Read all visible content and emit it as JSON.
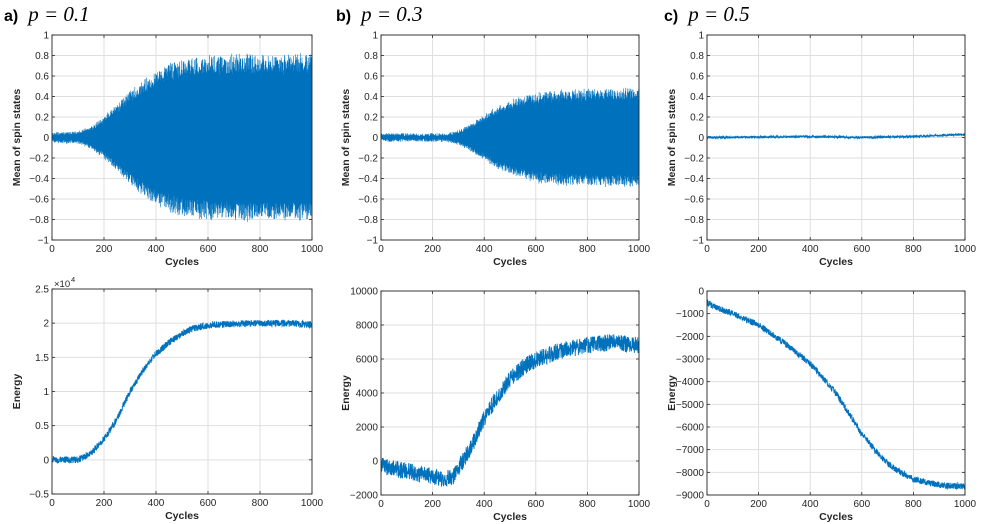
{
  "columns": [
    {
      "letter": "a)",
      "label": "p = 0.1"
    },
    {
      "letter": "b)",
      "label": "p = 0.3"
    },
    {
      "letter": "c)",
      "label": "p = 0.5"
    }
  ],
  "chart_data": [
    {
      "id": "a-spin",
      "type": "line",
      "title": "",
      "xlabel": "Cycles",
      "ylabel": "Mean of spin states",
      "xlim": [
        0,
        1000
      ],
      "ylim": [
        -1,
        1
      ],
      "grid": true,
      "color": "#0072bd",
      "xticks": [
        0,
        200,
        400,
        600,
        800,
        1000
      ],
      "yticks": [
        -1,
        -0.8,
        -0.6,
        -0.4,
        -0.2,
        0,
        0.2,
        0.4,
        0.6,
        0.8,
        1
      ],
      "ytick_labels": [
        "−1",
        "−0.8",
        "−0.6",
        "−0.4",
        "−0.2",
        "0",
        "0.2",
        "0.4",
        "0.6",
        "0.8",
        "1"
      ],
      "envelope": {
        "x": [
          0,
          100,
          150,
          200,
          250,
          300,
          350,
          400,
          450,
          500,
          550,
          600,
          650,
          700,
          800,
          900,
          1000
        ],
        "amplitude": [
          0.04,
          0.05,
          0.1,
          0.2,
          0.32,
          0.45,
          0.56,
          0.65,
          0.72,
          0.76,
          0.78,
          0.8,
          0.805,
          0.81,
          0.81,
          0.81,
          0.81
        ]
      }
    },
    {
      "id": "b-spin",
      "type": "line",
      "title": "",
      "xlabel": "Cycles",
      "ylabel": "Mean of spin states",
      "xlim": [
        0,
        1000
      ],
      "ylim": [
        -1,
        1
      ],
      "grid": true,
      "color": "#0072bd",
      "xticks": [
        0,
        200,
        400,
        600,
        800,
        1000
      ],
      "yticks": [
        -1,
        -0.8,
        -0.6,
        -0.4,
        -0.2,
        0,
        0.2,
        0.4,
        0.6,
        0.8,
        1
      ],
      "ytick_labels": [
        "−1",
        "−0.8",
        "−0.6",
        "−0.4",
        "−0.2",
        "0",
        "0.2",
        "0.4",
        "0.6",
        "0.8",
        "1"
      ],
      "envelope": {
        "x": [
          0,
          250,
          300,
          350,
          400,
          450,
          500,
          550,
          600,
          650,
          700,
          800,
          900,
          1000
        ],
        "amplitude": [
          0.03,
          0.03,
          0.06,
          0.13,
          0.22,
          0.3,
          0.36,
          0.4,
          0.43,
          0.45,
          0.46,
          0.47,
          0.475,
          0.48
        ]
      }
    },
    {
      "id": "c-spin",
      "type": "line",
      "title": "",
      "xlabel": "Cycles",
      "ylabel": "Mean of spin states",
      "xlim": [
        0,
        1000
      ],
      "ylim": [
        -1,
        1
      ],
      "grid": true,
      "color": "#0072bd",
      "xticks": [
        0,
        200,
        400,
        600,
        800,
        1000
      ],
      "yticks": [
        -1,
        -0.8,
        -0.6,
        -0.4,
        -0.2,
        0,
        0.2,
        0.4,
        0.6,
        0.8,
        1
      ],
      "ytick_labels": [
        "−1",
        "−0.8",
        "−0.6",
        "−0.4",
        "−0.2",
        "0",
        "0.2",
        "0.4",
        "0.6",
        "0.8",
        "1"
      ],
      "x": [
        0,
        200,
        400,
        600,
        800,
        1000
      ],
      "y": [
        0.0,
        0.005,
        0.01,
        0.0,
        0.01,
        0.03
      ],
      "noise": 0.01
    },
    {
      "id": "a-energy",
      "type": "line",
      "title": "",
      "xlabel": "Cycles",
      "ylabel": "Energy",
      "xlim": [
        0,
        1000
      ],
      "ylim": [
        -0.5,
        2.5
      ],
      "grid": true,
      "color": "#0072bd",
      "scale_note": "×10",
      "scale_exp": "4",
      "xticks": [
        0,
        200,
        400,
        600,
        800,
        1000
      ],
      "yticks": [
        -0.5,
        0,
        0.5,
        1,
        1.5,
        2,
        2.5
      ],
      "ytick_labels": [
        "−0.5",
        "0",
        "0.5",
        "1",
        "1.5",
        "2",
        "2.5"
      ],
      "x": [
        0,
        100,
        150,
        200,
        250,
        300,
        350,
        400,
        450,
        500,
        550,
        600,
        700,
        800,
        900,
        1000
      ],
      "y": [
        0.0,
        0.0,
        0.1,
        0.3,
        0.6,
        1.0,
        1.3,
        1.55,
        1.72,
        1.85,
        1.93,
        1.97,
        1.99,
        2.0,
        2.0,
        1.98
      ],
      "noise": 0.05
    },
    {
      "id": "b-energy",
      "type": "line",
      "title": "",
      "xlabel": "Cycles",
      "ylabel": "Energy",
      "xlim": [
        0,
        1000
      ],
      "ylim": [
        -2000,
        10000
      ],
      "grid": true,
      "color": "#0072bd",
      "xticks": [
        0,
        200,
        400,
        600,
        800,
        1000
      ],
      "yticks": [
        -2000,
        0,
        2000,
        4000,
        6000,
        8000,
        10000
      ],
      "ytick_labels": [
        "−2000",
        "0",
        "2000",
        "4000",
        "6000",
        "8000",
        "10000"
      ],
      "x": [
        0,
        100,
        200,
        250,
        280,
        300,
        350,
        400,
        450,
        500,
        550,
        600,
        700,
        800,
        900,
        1000
      ],
      "y": [
        -300,
        -600,
        -900,
        -1100,
        -900,
        -400,
        800,
        2500,
        3800,
        4800,
        5500,
        6000,
        6500,
        6800,
        7000,
        6800
      ],
      "noise": 500
    },
    {
      "id": "c-energy",
      "type": "line",
      "title": "",
      "xlabel": "Cycles",
      "ylabel": "Energy",
      "xlim": [
        0,
        1000
      ],
      "ylim": [
        -9000,
        0
      ],
      "grid": true,
      "color": "#0072bd",
      "xticks": [
        0,
        200,
        400,
        600,
        800,
        1000
      ],
      "yticks": [
        -9000,
        -8000,
        -7000,
        -6000,
        -5000,
        -4000,
        -3000,
        -2000,
        -1000,
        0
      ],
      "ytick_labels": [
        "−9000",
        "−8000",
        "−7000",
        "−6000",
        "−5000",
        "−4000",
        "−3000",
        "−2000",
        "−1000",
        "0"
      ],
      "x": [
        0,
        50,
        100,
        200,
        300,
        400,
        500,
        550,
        600,
        650,
        700,
        750,
        800,
        850,
        900,
        950,
        1000
      ],
      "y": [
        -500,
        -800,
        -1000,
        -1500,
        -2300,
        -3200,
        -4500,
        -5400,
        -6300,
        -7000,
        -7600,
        -8000,
        -8300,
        -8450,
        -8550,
        -8600,
        -8620
      ],
      "noise": 140
    }
  ]
}
